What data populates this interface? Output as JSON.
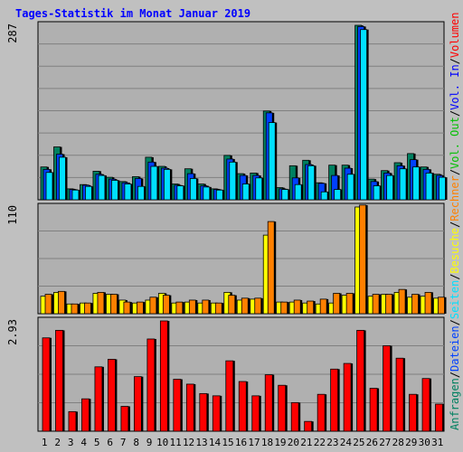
{
  "title": "Tages-Statistik im Monat Januar 2019",
  "colors": {
    "background": "#c0c0c0",
    "plot_bg": "#b0b0b0",
    "grid": "#808080",
    "anfragen": "#008060",
    "dateien": "#0040ff",
    "seiten": "#00e0ff",
    "besuche": "#ffff00",
    "rechner": "#ff8000",
    "vol_in": "#0000ff",
    "vol_out": "#00c000",
    "volumen": "#ff0000",
    "weekend_label": "#008060",
    "title": "#0000ff"
  },
  "chart_data": [
    {
      "type": "bar",
      "panel": "top",
      "y_max_label": "287",
      "ylim": [
        0,
        287
      ],
      "categories": [
        "1",
        "2",
        "3",
        "4",
        "5",
        "6",
        "7",
        "8",
        "9",
        "10",
        "11",
        "12",
        "13",
        "14",
        "15",
        "16",
        "17",
        "18",
        "19",
        "20",
        "21",
        "22",
        "23",
        "24",
        "25",
        "26",
        "27",
        "28",
        "29",
        "30",
        "31"
      ],
      "weekend_days": [
        5,
        6,
        12,
        13,
        19,
        20,
        26,
        27
      ],
      "series": [
        {
          "name": "Anfragen",
          "color": "#008060",
          "values": [
            54,
            87,
            18,
            25,
            47,
            37,
            30,
            38,
            70,
            55,
            26,
            51,
            26,
            18,
            73,
            43,
            44,
            146,
            20,
            56,
            65,
            28,
            57,
            57,
            287,
            34,
            48,
            61,
            76,
            54,
            42
          ]
        },
        {
          "name": "Dateien",
          "color": "#0040ff",
          "values": [
            50,
            75,
            17,
            24,
            42,
            34,
            28,
            35,
            62,
            52,
            24,
            43,
            23,
            17,
            67,
            40,
            40,
            143,
            18,
            36,
            58,
            27,
            40,
            52,
            285,
            30,
            44,
            56,
            66,
            50,
            40
          ]
        },
        {
          "name": "Seiten",
          "color": "#00e0ff",
          "values": [
            45,
            70,
            16,
            22,
            40,
            32,
            26,
            22,
            55,
            50,
            23,
            35,
            21,
            16,
            62,
            26,
            36,
            127,
            17,
            25,
            56,
            13,
            17,
            42,
            280,
            23,
            40,
            51,
            54,
            44,
            37
          ]
        }
      ],
      "legend": [
        "Anfragen",
        "Dateien",
        "Seiten"
      ]
    },
    {
      "type": "bar",
      "panel": "middle",
      "y_max_label": "110",
      "ylim": [
        0,
        110
      ],
      "categories": [
        "1",
        "2",
        "3",
        "4",
        "5",
        "6",
        "7",
        "8",
        "9",
        "10",
        "11",
        "12",
        "13",
        "14",
        "15",
        "16",
        "17",
        "18",
        "19",
        "20",
        "21",
        "22",
        "23",
        "24",
        "25",
        "26",
        "27",
        "28",
        "29",
        "30",
        "31"
      ],
      "series": [
        {
          "name": "Besuche",
          "color": "#ffff00",
          "values": [
            18,
            22,
            10,
            11,
            21,
            20,
            14,
            11,
            14,
            21,
            11,
            12,
            11,
            11,
            22,
            14,
            15,
            81,
            12,
            12,
            11,
            10,
            11,
            19,
            110,
            18,
            20,
            22,
            17,
            18,
            16
          ]
        },
        {
          "name": "Rechner",
          "color": "#ff8000",
          "values": [
            20,
            23,
            10,
            11,
            22,
            20,
            12,
            12,
            17,
            19,
            12,
            14,
            14,
            11,
            19,
            16,
            16,
            95,
            12,
            14,
            13,
            15,
            21,
            21,
            112,
            20,
            20,
            25,
            20,
            22,
            17
          ]
        }
      ],
      "legend": [
        "Besuche",
        "Rechner"
      ]
    },
    {
      "type": "bar",
      "panel": "bottom",
      "y_max_label": "2.93",
      "ylim": [
        0,
        2.93
      ],
      "categories": [
        "1",
        "2",
        "3",
        "4",
        "5",
        "6",
        "7",
        "8",
        "9",
        "10",
        "11",
        "12",
        "13",
        "14",
        "15",
        "16",
        "17",
        "18",
        "19",
        "20",
        "21",
        "22",
        "23",
        "24",
        "25",
        "26",
        "27",
        "28",
        "29",
        "30",
        "31"
      ],
      "series": [
        {
          "name": "Volumen",
          "color": "#ff0000",
          "values": [
            2.48,
            2.68,
            0.52,
            0.86,
            1.71,
            1.91,
            0.66,
            1.45,
            2.45,
            2.93,
            1.38,
            1.25,
            1.0,
            0.94,
            1.87,
            1.32,
            0.94,
            1.5,
            1.22,
            0.76,
            0.26,
            0.98,
            1.65,
            1.8,
            2.68,
            1.14,
            2.27,
            1.94,
            0.98,
            1.4,
            0.72
          ]
        }
      ],
      "legend": [
        "Volumen",
        "Vol. In",
        "Vol. Out"
      ]
    }
  ],
  "legend_right": [
    {
      "text": "Anfragen",
      "color": "#008060"
    },
    {
      "text": "/",
      "color": "#000000"
    },
    {
      "text": "Dateien",
      "color": "#0040ff"
    },
    {
      "text": "/",
      "color": "#000000"
    },
    {
      "text": "Seiten",
      "color": "#00e0ff"
    },
    {
      "text": "/",
      "color": "#000000"
    },
    {
      "text": "Besuche",
      "color": "#ffff00"
    },
    {
      "text": "/",
      "color": "#000000"
    },
    {
      "text": "Rechner",
      "color": "#ff8000"
    },
    {
      "text": "/",
      "color": "#000000"
    },
    {
      "text": "Vol. Out",
      "color": "#00c000"
    },
    {
      "text": "/",
      "color": "#000000"
    },
    {
      "text": "Vol. In",
      "color": "#0000ff"
    },
    {
      "text": "/",
      "color": "#000000"
    },
    {
      "text": "Volumen",
      "color": "#ff0000"
    }
  ]
}
